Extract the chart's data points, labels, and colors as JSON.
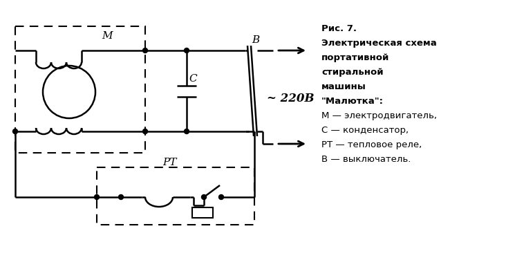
{
  "bg_color": "#ffffff",
  "line_color": "#000000",
  "fig_width": 7.45,
  "fig_height": 3.76,
  "title_line1": "Рис. 7.",
  "title_line2": "Электрическая схема",
  "title_line3": "портативной",
  "title_line4": "стиральной",
  "title_line5": "машины",
  "title_line6": "\"Малютка\":",
  "title_line7": "М — электродвигатель,",
  "title_line8": "С — конденсатор,",
  "title_line9": "РТ — тепловое реле,",
  "title_line10": "В — выключатель.",
  "voltage_label": "~ 220В"
}
